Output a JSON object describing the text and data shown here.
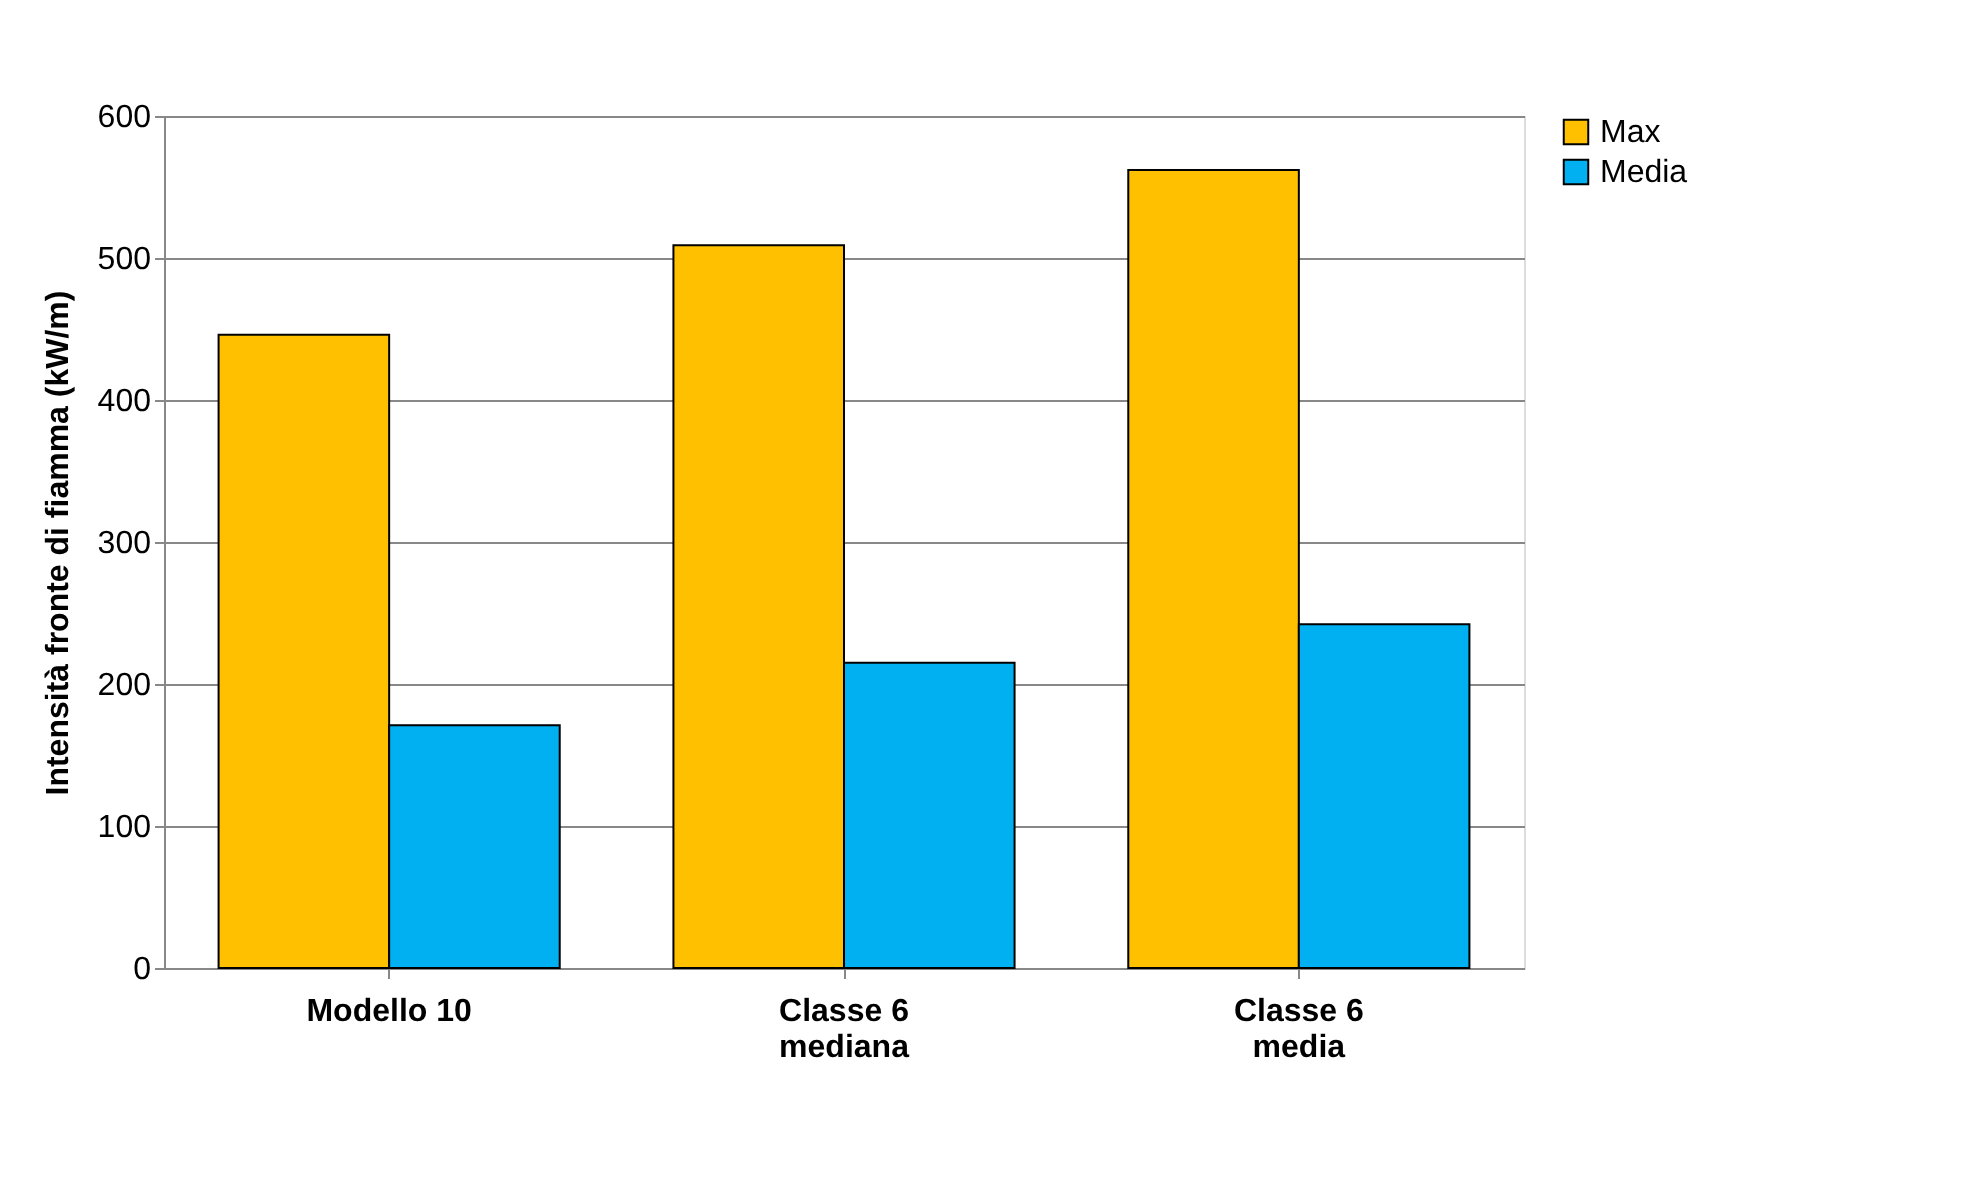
{
  "chart_data": {
    "type": "bar",
    "ylabel": "Intensità  fronte di fiamma (kW/m)",
    "categories": [
      "Modello 10",
      "Classe 6\nmediana",
      "Classe 6\nmedia"
    ],
    "series": [
      {
        "name": "Max",
        "color": "#ffc000",
        "values": [
          446,
          509,
          562
        ]
      },
      {
        "name": "Media",
        "color": "#00b0f0",
        "values": [
          171,
          215,
          242
        ]
      }
    ],
    "ylim": [
      0,
      600
    ],
    "yticks": [
      0,
      100,
      200,
      300,
      400,
      500,
      600
    ],
    "grid": "y",
    "legend": "right"
  }
}
